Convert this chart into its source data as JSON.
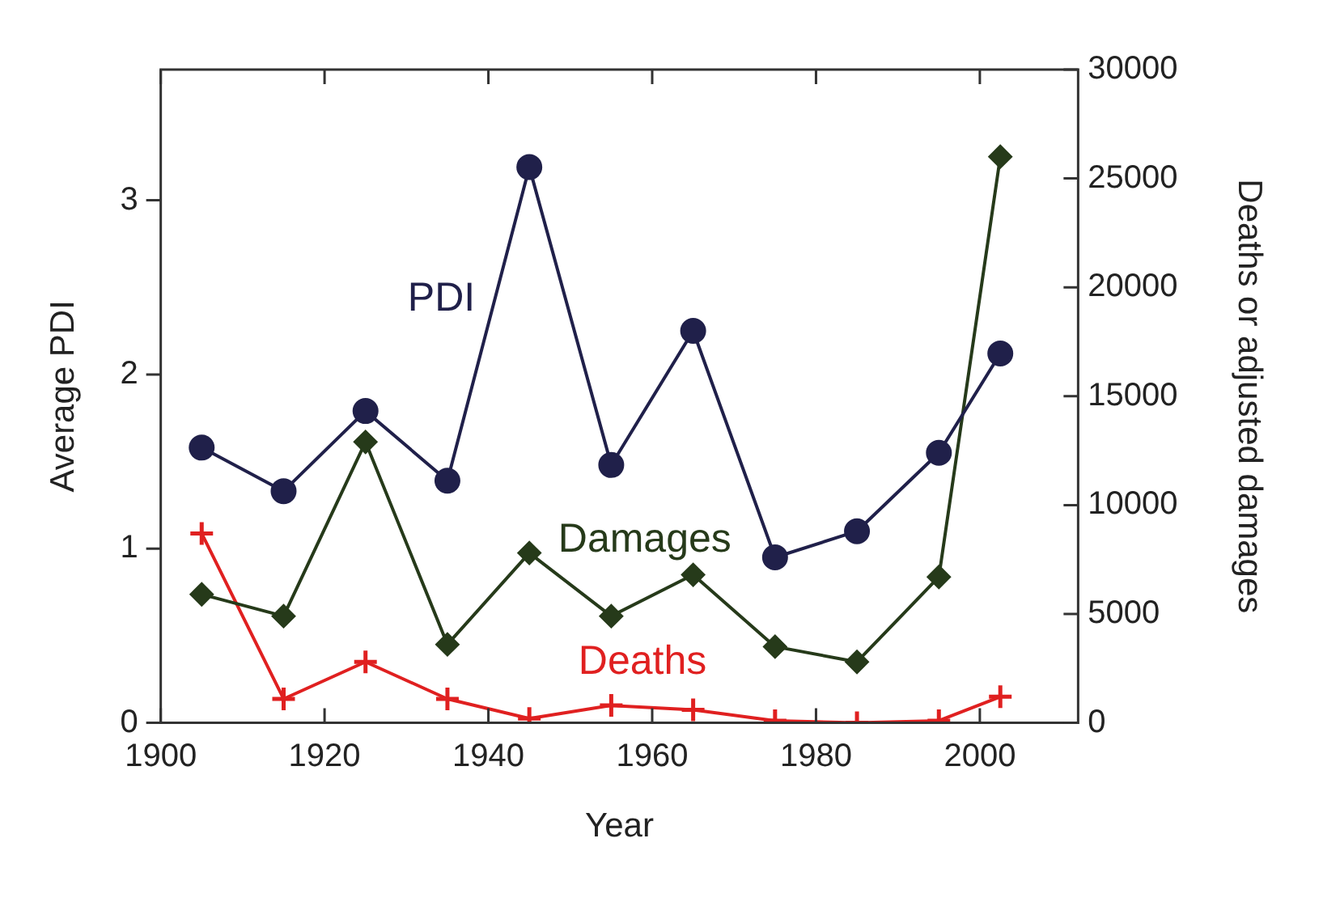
{
  "chart_data": {
    "type": "line",
    "xlabel": "Year",
    "ylabel": "Average PDI",
    "y2label": "Deaths or adjusted damages",
    "x": [
      1905,
      1915,
      1925,
      1935,
      1945,
      1955,
      1965,
      1975,
      1985,
      1995,
      2002.5
    ],
    "series": [
      {
        "name": "PDI",
        "color": "#20204a",
        "marker": "circle",
        "values": [
          1.58,
          1.33,
          1.79,
          1.39,
          3.19,
          1.48,
          2.25,
          0.95,
          1.1,
          1.55,
          2.12
        ]
      },
      {
        "name": "Damages",
        "color": "#263a1a",
        "marker": "diamond",
        "axis": "y2",
        "values": [
          5900,
          4900,
          12900,
          3600,
          7800,
          4900,
          6800,
          3500,
          2800,
          6700,
          26000
        ]
      },
      {
        "name": "Deaths",
        "color": "#e02020",
        "marker": "cross",
        "axis": "y2",
        "values": [
          8700,
          1100,
          2800,
          1100,
          200,
          800,
          600,
          100,
          0,
          100,
          1200
        ]
      }
    ],
    "xlim": [
      1900,
      2012
    ],
    "xticks": [
      1900,
      1920,
      1940,
      1960,
      1980,
      2000
    ],
    "ylim": [
      0,
      3.75
    ],
    "yticks": [
      0,
      1,
      2,
      3
    ],
    "y2lim": [
      0,
      30000
    ],
    "y2ticks": [
      0,
      5000,
      10000,
      15000,
      20000,
      25000,
      30000
    ]
  }
}
